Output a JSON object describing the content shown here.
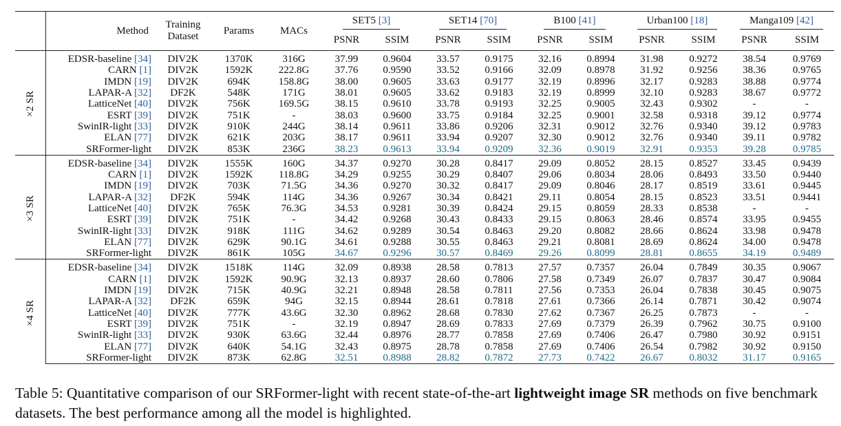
{
  "header": {
    "method": "Method",
    "training_dataset_line1": "Training",
    "training_dataset_line2": "Dataset",
    "params": "Params",
    "macs": "MACs",
    "psnr": "PSNR",
    "ssim": "SSIM",
    "datasets": [
      {
        "name": "SET5",
        "ref": "[3]"
      },
      {
        "name": "SET14",
        "ref": "[70]"
      },
      {
        "name": "B100",
        "ref": "[41]"
      },
      {
        "name": "Urban100",
        "ref": "[18]"
      },
      {
        "name": "Manga109",
        "ref": "[42]"
      }
    ]
  },
  "groups": [
    {
      "scale": "×2 SR",
      "rows": [
        {
          "method": "EDSR-baseline",
          "ref": "[34]",
          "dataset": "DIV2K",
          "params": "1370K",
          "macs": "316G",
          "values": [
            "37.99",
            "0.9604",
            "33.57",
            "0.9175",
            "32.16",
            "0.8994",
            "31.98",
            "0.9272",
            "38.54",
            "0.9769"
          ]
        },
        {
          "method": "CARN",
          "ref": "[1]",
          "dataset": "DIV2K",
          "params": "1592K",
          "macs": "222.8G",
          "values": [
            "37.76",
            "0.9590",
            "33.52",
            "0.9166",
            "32.09",
            "0.8978",
            "31.92",
            "0.9256",
            "38.36",
            "0.9765"
          ]
        },
        {
          "method": "IMDN",
          "ref": "[19]",
          "dataset": "DIV2K",
          "params": "694K",
          "macs": "158.8G",
          "values": [
            "38.00",
            "0.9605",
            "33.63",
            "0.9177",
            "32.19",
            "0.8996",
            "32.17",
            "0.9283",
            "38.88",
            "0.9774"
          ]
        },
        {
          "method": "LAPAR-A",
          "ref": "[32]",
          "dataset": "DF2K",
          "params": "548K",
          "macs": "171G",
          "values": [
            "38.01",
            "0.9605",
            "33.62",
            "0.9183",
            "32.19",
            "0.8999",
            "32.10",
            "0.9283",
            "38.67",
            "0.9772"
          ]
        },
        {
          "method": "LatticeNet",
          "ref": "[40]",
          "dataset": "DIV2K",
          "params": "756K",
          "macs": "169.5G",
          "values": [
            "38.15",
            "0.9610",
            "33.78",
            "0.9193",
            "32.25",
            "0.9005",
            "32.43",
            "0.9302",
            "-",
            "-"
          ]
        },
        {
          "method": "ESRT",
          "ref": "[39]",
          "dataset": "DIV2K",
          "params": "751K",
          "macs": "-",
          "values": [
            "38.03",
            "0.9600",
            "33.75",
            "0.9184",
            "32.25",
            "0.9001",
            "32.58",
            "0.9318",
            "39.12",
            "0.9774"
          ]
        },
        {
          "method": "SwinIR-light",
          "ref": "[33]",
          "dataset": "DIV2K",
          "params": "910K",
          "macs": "244G",
          "values": [
            "38.14",
            "0.9611",
            "33.86",
            "0.9206",
            "32.31",
            "0.9012",
            "32.76",
            "0.9340",
            "39.12",
            "0.9783"
          ]
        },
        {
          "method": "ELAN",
          "ref": "[77]",
          "dataset": "DIV2K",
          "params": "621K",
          "macs": "203G",
          "values": [
            "38.17",
            "0.9611",
            "33.94",
            "0.9207",
            "32.30",
            "0.9012",
            "32.76",
            "0.9340",
            "39.11",
            "0.9782"
          ]
        },
        {
          "method": "SRFormer-light",
          "ref": "",
          "dataset": "DIV2K",
          "params": "853K",
          "macs": "236G",
          "values": [
            "38.23",
            "0.9613",
            "33.94",
            "0.9209",
            "32.36",
            "0.9019",
            "32.91",
            "0.9353",
            "39.28",
            "0.9785"
          ]
        }
      ]
    },
    {
      "scale": "×3 SR",
      "rows": [
        {
          "method": "EDSR-baseline",
          "ref": "[34]",
          "dataset": "DIV2K",
          "params": "1555K",
          "macs": "160G",
          "values": [
            "34.37",
            "0.9270",
            "30.28",
            "0.8417",
            "29.09",
            "0.8052",
            "28.15",
            "0.8527",
            "33.45",
            "0.9439"
          ]
        },
        {
          "method": "CARN",
          "ref": "[1]",
          "dataset": "DIV2K",
          "params": "1592K",
          "macs": "118.8G",
          "values": [
            "34.29",
            "0.9255",
            "30.29",
            "0.8407",
            "29.06",
            "0.8034",
            "28.06",
            "0.8493",
            "33.50",
            "0.9440"
          ]
        },
        {
          "method": "IMDN",
          "ref": "[19]",
          "dataset": "DIV2K",
          "params": "703K",
          "macs": "71.5G",
          "values": [
            "34.36",
            "0.9270",
            "30.32",
            "0.8417",
            "29.09",
            "0.8046",
            "28.17",
            "0.8519",
            "33.61",
            "0.9445"
          ]
        },
        {
          "method": "LAPAR-A",
          "ref": "[32]",
          "dataset": "DF2K",
          "params": "594K",
          "macs": "114G",
          "values": [
            "34.36",
            "0.9267",
            "30.34",
            "0.8421",
            "29.11",
            "0.8054",
            "28.15",
            "0.8523",
            "33.51",
            "0.9441"
          ]
        },
        {
          "method": "LatticeNet",
          "ref": "[40]",
          "dataset": "DIV2K",
          "params": "765K",
          "macs": "76.3G",
          "values": [
            "34.53",
            "0.9281",
            "30.39",
            "0.8424",
            "29.15",
            "0.8059",
            "28.33",
            "0.8538",
            "-",
            "-"
          ]
        },
        {
          "method": "ESRT",
          "ref": "[39]",
          "dataset": "DIV2K",
          "params": "751K",
          "macs": "-",
          "values": [
            "34.42",
            "0.9268",
            "30.43",
            "0.8433",
            "29.15",
            "0.8063",
            "28.46",
            "0.8574",
            "33.95",
            "0.9455"
          ]
        },
        {
          "method": "SwinIR-light",
          "ref": "[33]",
          "dataset": "DIV2K",
          "params": "918K",
          "macs": "111G",
          "values": [
            "34.62",
            "0.9289",
            "30.54",
            "0.8463",
            "29.20",
            "0.8082",
            "28.66",
            "0.8624",
            "33.98",
            "0.9478"
          ]
        },
        {
          "method": "ELAN",
          "ref": "[77]",
          "dataset": "DIV2K",
          "params": "629K",
          "macs": "90.1G",
          "values": [
            "34.61",
            "0.9288",
            "30.55",
            "0.8463",
            "29.21",
            "0.8081",
            "28.69",
            "0.8624",
            "34.00",
            "0.9478"
          ]
        },
        {
          "method": "SRFormer-light",
          "ref": "",
          "dataset": "DIV2K",
          "params": "861K",
          "macs": "105G",
          "values": [
            "34.67",
            "0.9296",
            "30.57",
            "0.8469",
            "29.26",
            "0.8099",
            "28.81",
            "0.8655",
            "34.19",
            "0.9489"
          ]
        }
      ]
    },
    {
      "scale": "×4 SR",
      "rows": [
        {
          "method": "EDSR-baseline",
          "ref": "[34]",
          "dataset": "DIV2K",
          "params": "1518K",
          "macs": "114G",
          "values": [
            "32.09",
            "0.8938",
            "28.58",
            "0.7813",
            "27.57",
            "0.7357",
            "26.04",
            "0.7849",
            "30.35",
            "0.9067"
          ]
        },
        {
          "method": "CARN",
          "ref": "[1]",
          "dataset": "DIV2K",
          "params": "1592K",
          "macs": "90.9G",
          "values": [
            "32.13",
            "0.8937",
            "28.60",
            "0.7806",
            "27.58",
            "0.7349",
            "26.07",
            "0.7837",
            "30.47",
            "0.9084"
          ]
        },
        {
          "method": "IMDN",
          "ref": "[19]",
          "dataset": "DIV2K",
          "params": "715K",
          "macs": "40.9G",
          "values": [
            "32.21",
            "0.8948",
            "28.58",
            "0.7811",
            "27.56",
            "0.7353",
            "26.04",
            "0.7838",
            "30.45",
            "0.9075"
          ]
        },
        {
          "method": "LAPAR-A",
          "ref": "[32]",
          "dataset": "DF2K",
          "params": "659K",
          "macs": "94G",
          "values": [
            "32.15",
            "0.8944",
            "28.61",
            "0.7818",
            "27.61",
            "0.7366",
            "26.14",
            "0.7871",
            "30.42",
            "0.9074"
          ]
        },
        {
          "method": "LatticeNet",
          "ref": "[40]",
          "dataset": "DIV2K",
          "params": "777K",
          "macs": "43.6G",
          "values": [
            "32.30",
            "0.8962",
            "28.68",
            "0.7830",
            "27.62",
            "0.7367",
            "26.25",
            "0.7873",
            "-",
            "-"
          ]
        },
        {
          "method": "ESRT",
          "ref": "[39]",
          "dataset": "DIV2K",
          "params": "751K",
          "macs": "-",
          "values": [
            "32.19",
            "0.8947",
            "28.69",
            "0.7833",
            "27.69",
            "0.7379",
            "26.39",
            "0.7962",
            "30.75",
            "0.9100"
          ]
        },
        {
          "method": "SwinIR-light",
          "ref": "[33]",
          "dataset": "DIV2K",
          "params": "930K",
          "macs": "63.6G",
          "values": [
            "32.44",
            "0.8976",
            "28.77",
            "0.7858",
            "27.69",
            "0.7406",
            "26.47",
            "0.7980",
            "30.92",
            "0.9151"
          ]
        },
        {
          "method": "ELAN",
          "ref": "[77]",
          "dataset": "DIV2K",
          "params": "640K",
          "macs": "54.1G",
          "values": [
            "32.43",
            "0.8975",
            "28.78",
            "0.7858",
            "27.69",
            "0.7406",
            "26.54",
            "0.7982",
            "30.92",
            "0.9150"
          ]
        },
        {
          "method": "SRFormer-light",
          "ref": "",
          "dataset": "DIV2K",
          "params": "873K",
          "macs": "62.8G",
          "values": [
            "32.51",
            "0.8988",
            "28.82",
            "0.7872",
            "27.73",
            "0.7422",
            "26.67",
            "0.8032",
            "31.17",
            "0.9165"
          ]
        }
      ]
    }
  ],
  "highlight_color": "#1d6b8a",
  "ref_color": "#2b5f9e",
  "caption": {
    "prefix": "Table 5: Quantitative comparison of our SRFormer-light with recent state-of-the-art",
    "bold": "lightweight image SR",
    "suffix": "methods on five benchmark datasets. The best performance among all the model is highlighted."
  }
}
